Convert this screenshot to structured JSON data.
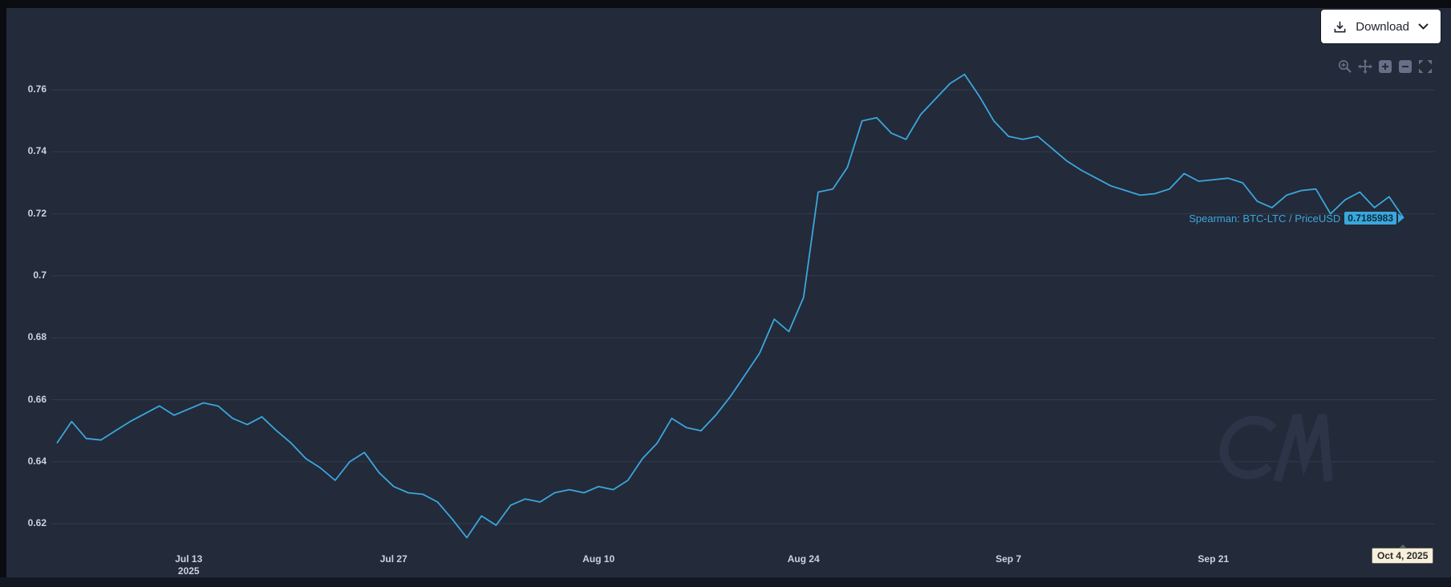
{
  "page": {
    "download_label": "Download"
  },
  "toolbar": {
    "icons": [
      "zoom",
      "pan",
      "zoom-in",
      "zoom-out",
      "autoscale"
    ]
  },
  "series_label": {
    "text": "Spearman: BTC-LTC / PriceUSD",
    "value": "0.7185983"
  },
  "x_axis_tooltip": "Oct 4, 2025",
  "watermark": "CM",
  "colors": {
    "accent": "#3aa7dd",
    "background": "#232a39",
    "grid": "#333b4d",
    "tick_text": "#ccd2de",
    "badge_bg": "#3aa7dd",
    "axis_tooltip_bg": "#f6f0dc",
    "download_button_bg": "#ffffff"
  },
  "chart_data": {
    "type": "line",
    "title": "",
    "xlabel": "",
    "ylabel": "",
    "grid": "horizontal",
    "legend": "none",
    "ylim": [
      0.612,
      0.772
    ],
    "y_ticks": [
      "0.62",
      "0.64",
      "0.66",
      "0.68",
      "0.7",
      "0.72",
      "0.74",
      "0.76"
    ],
    "x_ticks": [
      {
        "label": "Jul 13",
        "sublabel": "2025",
        "date": "2025-07-13"
      },
      {
        "label": "Jul 27",
        "date": "2025-07-27"
      },
      {
        "label": "Aug 10",
        "date": "2025-08-10"
      },
      {
        "label": "Aug 24",
        "date": "2025-08-24"
      },
      {
        "label": "Sep 7",
        "date": "2025-09-07"
      },
      {
        "label": "Sep 21",
        "date": "2025-09-21"
      }
    ],
    "series": [
      {
        "name": "Spearman: BTC-LTC / PriceUSD",
        "color": "#3aa7dd",
        "last_value": 0.7185983,
        "dates": [
          "2025-07-04",
          "2025-07-05",
          "2025-07-06",
          "2025-07-07",
          "2025-07-08",
          "2025-07-09",
          "2025-07-10",
          "2025-07-11",
          "2025-07-12",
          "2025-07-13",
          "2025-07-14",
          "2025-07-15",
          "2025-07-16",
          "2025-07-17",
          "2025-07-18",
          "2025-07-19",
          "2025-07-20",
          "2025-07-21",
          "2025-07-22",
          "2025-07-23",
          "2025-07-24",
          "2025-07-25",
          "2025-07-26",
          "2025-07-27",
          "2025-07-28",
          "2025-07-29",
          "2025-07-30",
          "2025-07-31",
          "2025-08-01",
          "2025-08-02",
          "2025-08-03",
          "2025-08-04",
          "2025-08-05",
          "2025-08-06",
          "2025-08-07",
          "2025-08-08",
          "2025-08-09",
          "2025-08-10",
          "2025-08-11",
          "2025-08-12",
          "2025-08-13",
          "2025-08-14",
          "2025-08-15",
          "2025-08-16",
          "2025-08-17",
          "2025-08-18",
          "2025-08-19",
          "2025-08-20",
          "2025-08-21",
          "2025-08-22",
          "2025-08-23",
          "2025-08-24",
          "2025-08-25",
          "2025-08-26",
          "2025-08-27",
          "2025-08-28",
          "2025-08-29",
          "2025-08-30",
          "2025-08-31",
          "2025-09-01",
          "2025-09-02",
          "2025-09-03",
          "2025-09-04",
          "2025-09-05",
          "2025-09-06",
          "2025-09-07",
          "2025-09-08",
          "2025-09-09",
          "2025-09-10",
          "2025-09-11",
          "2025-09-12",
          "2025-09-13",
          "2025-09-14",
          "2025-09-15",
          "2025-09-16",
          "2025-09-17",
          "2025-09-18",
          "2025-09-19",
          "2025-09-20",
          "2025-09-21",
          "2025-09-22",
          "2025-09-23",
          "2025-09-24",
          "2025-09-25",
          "2025-09-26",
          "2025-09-27",
          "2025-09-28",
          "2025-09-29",
          "2025-09-30",
          "2025-10-01",
          "2025-10-02",
          "2025-10-03",
          "2025-10-04"
        ],
        "values": [
          0.646,
          0.653,
          0.6475,
          0.647,
          0.65,
          0.653,
          0.6555,
          0.658,
          0.655,
          0.657,
          0.659,
          0.658,
          0.654,
          0.652,
          0.6545,
          0.65,
          0.646,
          0.641,
          0.638,
          0.634,
          0.64,
          0.643,
          0.6365,
          0.632,
          0.63,
          0.6295,
          0.627,
          0.6215,
          0.6155,
          0.6225,
          0.6195,
          0.626,
          0.628,
          0.627,
          0.63,
          0.631,
          0.63,
          0.632,
          0.631,
          0.634,
          0.641,
          0.646,
          0.654,
          0.651,
          0.65,
          0.655,
          0.661,
          0.668,
          0.675,
          0.686,
          0.682,
          0.693,
          0.727,
          0.728,
          0.735,
          0.75,
          0.751,
          0.746,
          0.744,
          0.752,
          0.757,
          0.762,
          0.765,
          0.758,
          0.75,
          0.745,
          0.744,
          0.745,
          0.741,
          0.737,
          0.734,
          0.7315,
          0.729,
          0.7275,
          0.726,
          0.7265,
          0.728,
          0.733,
          0.7305,
          0.731,
          0.7315,
          0.73,
          0.724,
          0.722,
          0.726,
          0.7275,
          0.728,
          0.72,
          0.7245,
          0.727,
          0.722,
          0.7255,
          0.7185983
        ]
      }
    ]
  }
}
